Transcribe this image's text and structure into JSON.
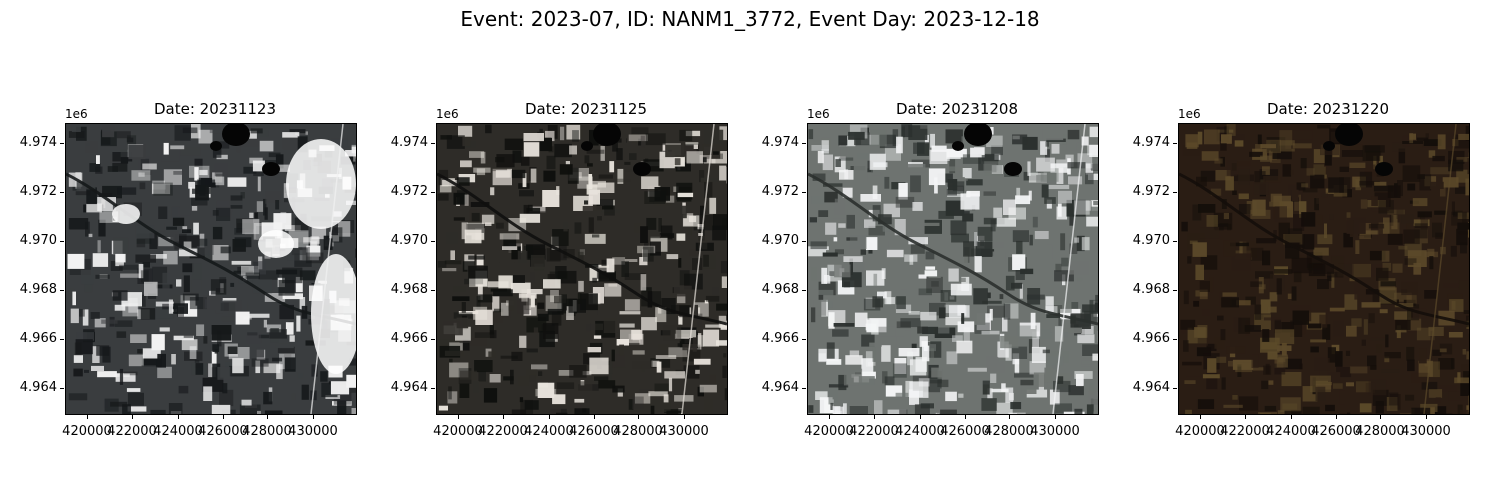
{
  "figure": {
    "title": "Event: 2023-07, ID: NANM1_3772, Event Day: 2023-12-18"
  },
  "axes_common": {
    "y_offset_label": "1e6",
    "y_ticks": [
      "4.974",
      "4.972",
      "4.970",
      "4.968",
      "4.966",
      "4.964"
    ],
    "x_ticks": [
      "420000",
      "422000",
      "424000",
      "426000",
      "428000",
      "430000"
    ]
  },
  "panels": [
    {
      "title": "Date: 20231123",
      "palette": {
        "base": "#3a3d3f",
        "dark": "#15181a",
        "light": "#f2f2f2",
        "cloud": "#ffffff"
      }
    },
    {
      "title": "Date: 20231125",
      "palette": {
        "base": "#2e2c28",
        "dark": "#0f100e",
        "light": "#e8e3dc",
        "cloud": "#f7f5f2"
      }
    },
    {
      "title": "Date: 20231208",
      "palette": {
        "base": "#6e7370",
        "dark": "#2b302e",
        "light": "#f4f5f6",
        "cloud": "#ffffff"
      }
    },
    {
      "title": "Date: 20231220",
      "palette": {
        "base": "#2a1d14",
        "dark": "#140e0a",
        "light": "#5c4a2a",
        "cloud": "#6a6a3a"
      }
    }
  ]
}
